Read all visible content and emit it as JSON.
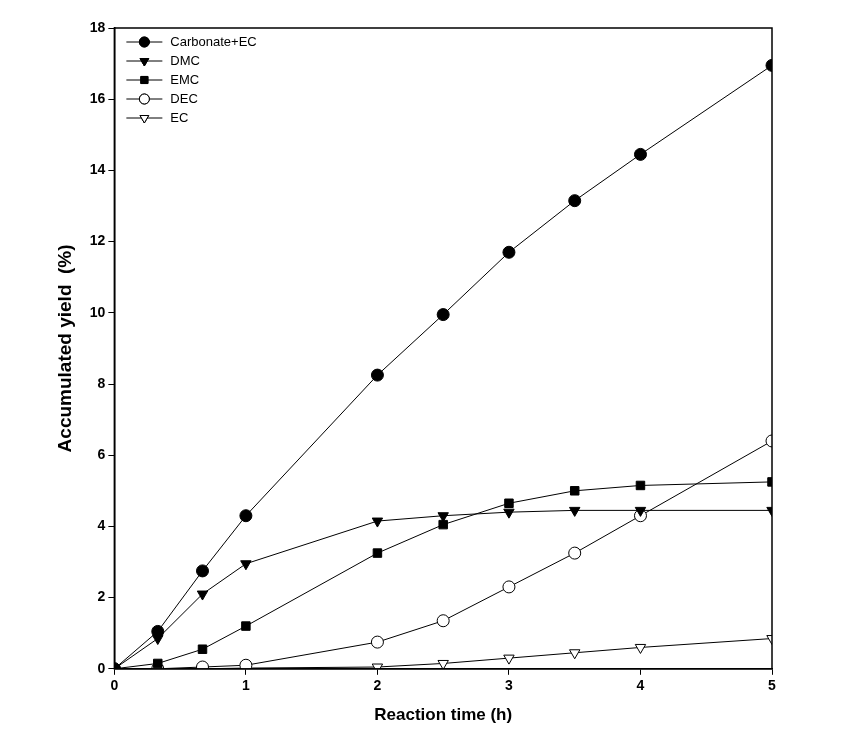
{
  "chart_data": {
    "type": "line",
    "x_label": "Reaction time (h)",
    "y_label": "Accumulated yield  (%)",
    "x": [
      0,
      0.33,
      0.67,
      1,
      2,
      2.5,
      3,
      3.5,
      4,
      5
    ],
    "series": [
      {
        "name": "Carbonate+EC",
        "color": "#000000",
        "marker": "circle",
        "values": [
          0,
          1.05,
          2.75,
          4.3,
          8.25,
          9.95,
          11.7,
          13.15,
          14.45,
          16.95
        ]
      },
      {
        "name": "DMC",
        "color": "#000000",
        "marker": "triangle_down",
        "values": [
          0,
          0.85,
          2.1,
          2.95,
          4.15,
          4.3,
          4.4,
          4.45,
          4.45,
          4.45
        ]
      },
      {
        "name": "EMC",
        "color": "#000000",
        "marker": "square",
        "values": [
          0,
          0.15,
          0.55,
          1.2,
          3.25,
          4.05,
          4.65,
          5.0,
          5.15,
          5.25
        ]
      },
      {
        "name": "DEC",
        "color": "#000000",
        "marker": "circle_open",
        "values": [
          0,
          0.0,
          0.05,
          0.1,
          0.75,
          1.35,
          2.3,
          3.25,
          4.3,
          6.4
        ]
      },
      {
        "name": "EC",
        "color": "#000000",
        "marker": "triangle_down_open",
        "values": [
          0,
          0,
          0,
          0.02,
          0.05,
          0.15,
          0.3,
          0.45,
          0.6,
          0.85
        ]
      }
    ],
    "xlim": [
      0,
      5
    ],
    "xticks": [
      0,
      1,
      2,
      3,
      4,
      5
    ],
    "ylim": [
      0,
      18
    ],
    "yticks": [
      0,
      2,
      4,
      6,
      8,
      10,
      12,
      14,
      16,
      18
    ],
    "grid": false,
    "legend": "top-left"
  }
}
